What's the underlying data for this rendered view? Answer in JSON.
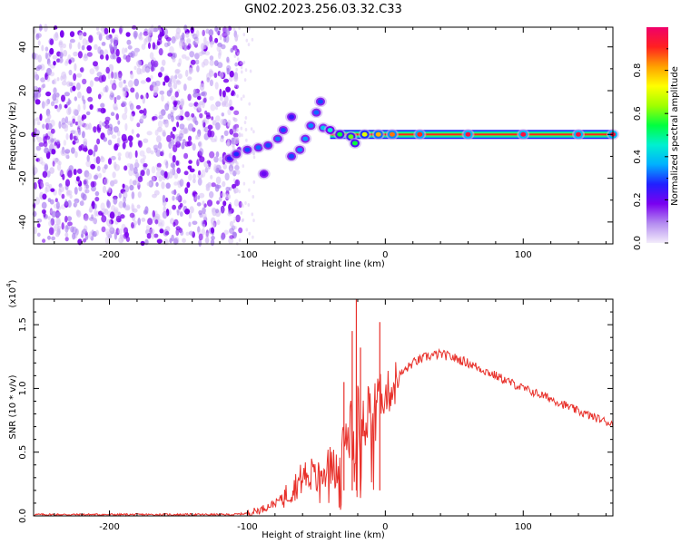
{
  "figure_title": "GN02.2023.256.03.32.C33",
  "chart_data": [
    {
      "type": "heatmap",
      "xlabel": "Height of straight line (km)",
      "ylabel": "Frequency (Hz)",
      "xlim": [
        -255,
        165
      ],
      "ylim": [
        -50,
        49
      ],
      "xticks": [
        -200,
        -100,
        0,
        100
      ],
      "xtick_labels": [
        "-200",
        "-100",
        "0",
        "100"
      ],
      "yticks": [
        -40,
        -20,
        0,
        20,
        40
      ],
      "ytick_labels": [
        "-40",
        "-20",
        "0",
        "20",
        "40"
      ],
      "colorbar": {
        "label": "Normalized spectral amplitude",
        "range": [
          0,
          1
        ],
        "ticks": [
          0.0,
          0.2,
          0.4,
          0.6,
          0.8
        ],
        "tick_labels": [
          "0.0",
          "0.2",
          "0.4",
          "0.6",
          "0.8"
        ],
        "colors": [
          "#f3ecfb",
          "#b48cf0",
          "#7a00f0",
          "#2020ff",
          "#00b0ff",
          "#00f0d0",
          "#00ff40",
          "#a0ff00",
          "#ffff00",
          "#ffa000",
          "#ff2020",
          "#f0006a"
        ]
      },
      "noise_region": {
        "x_range": [
          -255,
          -105
        ],
        "y_range": [
          -50,
          49
        ]
      },
      "signal_track": [
        {
          "x": -113,
          "y": -11,
          "amp": 0.25
        },
        {
          "x": -108,
          "y": -9,
          "amp": 0.28
        },
        {
          "x": -100,
          "y": -7,
          "amp": 0.3
        },
        {
          "x": -92,
          "y": -6,
          "amp": 0.32
        },
        {
          "x": -85,
          "y": -5,
          "amp": 0.3
        },
        {
          "x": -78,
          "y": -2,
          "amp": 0.33
        },
        {
          "x": -74,
          "y": 2,
          "amp": 0.3
        },
        {
          "x": -68,
          "y": 8,
          "amp": 0.25
        },
        {
          "x": -88,
          "y": -18,
          "amp": 0.2
        },
        {
          "x": -68,
          "y": -10,
          "amp": 0.3
        },
        {
          "x": -62,
          "y": -7,
          "amp": 0.34
        },
        {
          "x": -58,
          "y": -2,
          "amp": 0.35
        },
        {
          "x": -54,
          "y": 4,
          "amp": 0.34
        },
        {
          "x": -50,
          "y": 10,
          "amp": 0.32
        },
        {
          "x": -47,
          "y": 15,
          "amp": 0.3
        },
        {
          "x": -45,
          "y": 3,
          "amp": 0.4
        },
        {
          "x": -40,
          "y": 2,
          "amp": 0.45
        },
        {
          "x": -33,
          "y": 0,
          "amp": 0.55
        },
        {
          "x": -25,
          "y": -1,
          "amp": 0.6
        },
        {
          "x": -22,
          "y": -4,
          "amp": 0.55
        },
        {
          "x": -15,
          "y": 0,
          "amp": 0.7
        },
        {
          "x": -5,
          "y": 0,
          "amp": 0.8
        },
        {
          "x": 5,
          "y": 0,
          "amp": 0.85
        },
        {
          "x": 25,
          "y": 0,
          "amp": 0.9
        },
        {
          "x": 60,
          "y": 0,
          "amp": 0.95
        },
        {
          "x": 100,
          "y": 0,
          "amp": 0.95
        },
        {
          "x": 140,
          "y": 0,
          "amp": 0.95
        },
        {
          "x": 165,
          "y": 0,
          "amp": 0.95
        }
      ],
      "carrier_line": {
        "x_range": [
          -40,
          165
        ],
        "y": 0
      }
    },
    {
      "type": "line",
      "xlabel": "Height of straight line (km)",
      "ylabel": "SNR (10 * v/v)",
      "y_multiplier_label": "(x10",
      "y_multiplier_exponent": "4",
      "y_multiplier_close": ")",
      "xlim": [
        -255,
        165
      ],
      "ylim": [
        0,
        1.7
      ],
      "xticks": [
        -200,
        -100,
        0,
        100
      ],
      "xtick_labels": [
        "-200",
        "-100",
        "0",
        "100"
      ],
      "yticks": [
        0.0,
        0.5,
        1.0,
        1.5
      ],
      "ytick_labels": [
        "0.0",
        "0.5",
        "1.0",
        "1.5"
      ],
      "line_color": "#e8302a",
      "series": [
        {
          "x": [
            -255,
            -200,
            -150,
            -110,
            -100,
            -90,
            -80,
            -70,
            -60,
            -55,
            -50,
            -45,
            -40,
            -35,
            -30,
            -25,
            -20,
            -15,
            -10,
            -5,
            0,
            5,
            10,
            20,
            30,
            40,
            50,
            60,
            80,
            100,
            120,
            140,
            165
          ],
          "y": [
            0.01,
            0.01,
            0.01,
            0.01,
            0.02,
            0.05,
            0.1,
            0.18,
            0.3,
            0.35,
            0.28,
            0.35,
            0.4,
            0.35,
            0.55,
            0.75,
            0.9,
            0.8,
            0.85,
            0.95,
            0.95,
            1.0,
            1.1,
            1.2,
            1.25,
            1.27,
            1.24,
            1.2,
            1.1,
            1.0,
            0.92,
            0.82,
            0.72
          ]
        }
      ],
      "spikes": [
        {
          "x": -24,
          "y": 1.45
        },
        {
          "x": -21,
          "y": 1.7
        },
        {
          "x": -18,
          "y": 1.32
        },
        {
          "x": -4,
          "y": 1.52
        },
        {
          "x": -30,
          "y": 1.05
        }
      ]
    }
  ]
}
